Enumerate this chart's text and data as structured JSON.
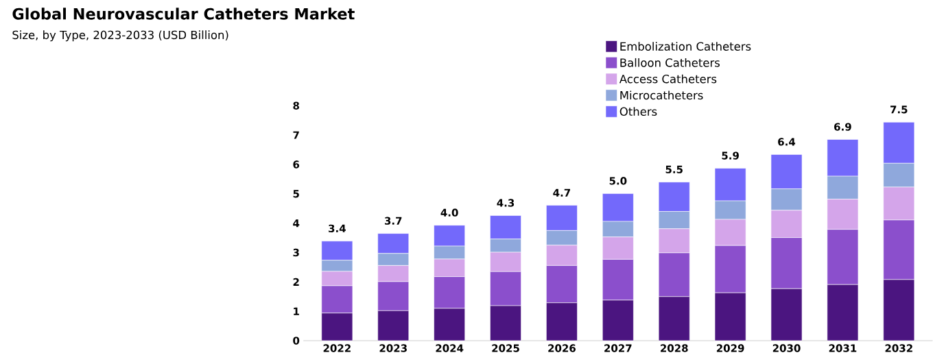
{
  "chart_data": {
    "type": "bar",
    "stacked": true,
    "title": "Global Neurovascular Catheters Market",
    "subtitle": "Size, by Type, 2023-2033 (USD Billion)",
    "categories": [
      "2022",
      "2023",
      "2024",
      "2025",
      "2026",
      "2027",
      "2028",
      "2029",
      "2030",
      "2031",
      "2032"
    ],
    "series": [
      {
        "name": "Embolization Catheters",
        "color": "#4b1580",
        "values": [
          0.94,
          1.02,
          1.1,
          1.19,
          1.29,
          1.38,
          1.5,
          1.63,
          1.77,
          1.91,
          2.08
        ]
      },
      {
        "name": "Balloon Catheters",
        "color": "#8b4fcc",
        "values": [
          0.93,
          0.99,
          1.08,
          1.16,
          1.27,
          1.39,
          1.49,
          1.61,
          1.74,
          1.88,
          2.03
        ]
      },
      {
        "name": "Access Catheters",
        "color": "#d4a5ea",
        "values": [
          0.49,
          0.55,
          0.6,
          0.66,
          0.69,
          0.76,
          0.82,
          0.89,
          0.93,
          1.03,
          1.12
        ]
      },
      {
        "name": "Microcatheters",
        "color": "#8fa8dc",
        "values": [
          0.38,
          0.41,
          0.44,
          0.45,
          0.5,
          0.53,
          0.59,
          0.63,
          0.73,
          0.78,
          0.81
        ]
      },
      {
        "name": "Others",
        "color": "#7369fb",
        "values": [
          0.65,
          0.68,
          0.71,
          0.8,
          0.86,
          0.95,
          1.0,
          1.11,
          1.17,
          1.25,
          1.4
        ]
      }
    ],
    "totals": [
      "3.4",
      "3.7",
      "4.0",
      "4.3",
      "4.7",
      "5.0",
      "5.5",
      "5.9",
      "6.4",
      "6.9",
      "7.5"
    ],
    "ylim": [
      0,
      8
    ],
    "yticks": [
      0,
      1,
      2,
      3,
      4,
      5,
      6,
      7,
      8
    ],
    "legend": "top",
    "grid": false
  }
}
